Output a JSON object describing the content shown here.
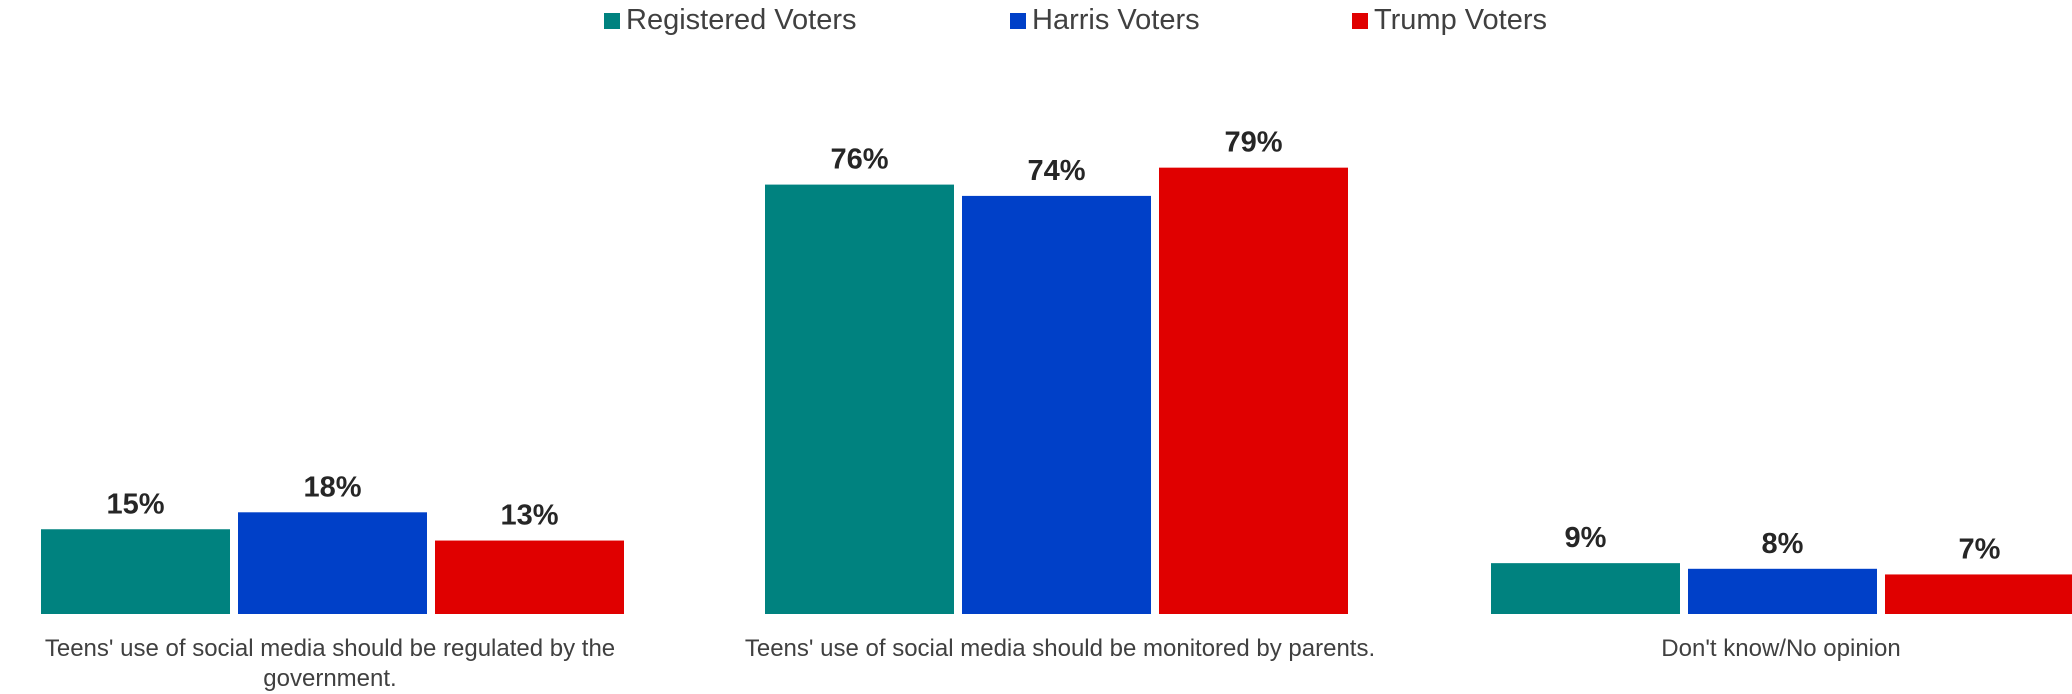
{
  "chart_data": {
    "type": "bar",
    "categories": [
      "Teens' use of social media should be regulated by the government.",
      "Teens' use of social media should be monitored by parents.",
      "Don't know/No opinion"
    ],
    "series": [
      {
        "name": "Registered Voters",
        "color": "#00827F",
        "values": [
          15,
          76,
          9
        ]
      },
      {
        "name": "Harris Voters",
        "color": "#0040C8",
        "values": [
          18,
          74,
          8
        ]
      },
      {
        "name": "Trump Voters",
        "color": "#E00000",
        "values": [
          13,
          79,
          7
        ]
      }
    ],
    "value_format": "percent",
    "ylim": [
      0,
      100
    ],
    "legend": "top-center",
    "grid": false
  }
}
